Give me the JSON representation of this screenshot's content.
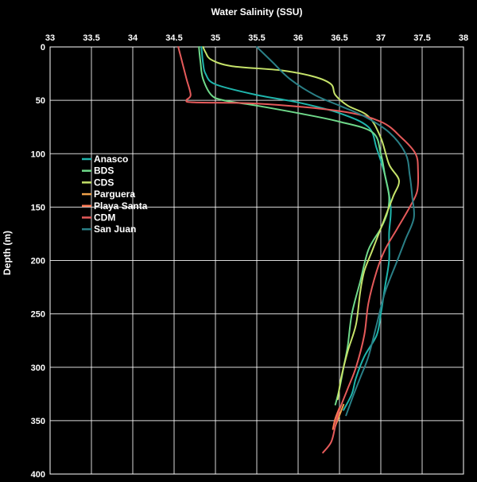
{
  "chart_data": {
    "type": "line",
    "title": "",
    "xlabel": "Water Salinity (SSU)",
    "ylabel": "Depth (m)",
    "xlim": [
      33,
      38
    ],
    "ylim": [
      400,
      0
    ],
    "x_axis_position": "top",
    "y_axis_inverted": true,
    "grid": true,
    "legend_position": "upper-left inside plot",
    "xticks": [
      "33",
      "33.5",
      "34",
      "34.5",
      "35",
      "35.5",
      "36",
      "36.5",
      "37",
      "37.5",
      "38"
    ],
    "yticks": [
      "0",
      "50",
      "100",
      "150",
      "200",
      "250",
      "300",
      "350",
      "400"
    ],
    "colors": {
      "background": "#000000",
      "grid": "#ffffff",
      "text": "#ffffff"
    },
    "series": [
      {
        "name": "Anasco",
        "color": "#1fb5ac",
        "x": [
          34.83,
          34.85,
          34.88,
          35.0,
          35.5,
          36.0,
          36.5,
          36.85,
          36.95,
          37.05,
          37.12,
          37.1,
          37.1,
          37.05,
          37.0,
          36.95,
          36.8,
          36.7,
          36.65,
          36.55
        ],
        "y": [
          0,
          15,
          25,
          35,
          45,
          52,
          62,
          75,
          95,
          120,
          150,
          175,
          200,
          225,
          250,
          270,
          290,
          310,
          325,
          340
        ]
      },
      {
        "name": "BDS",
        "color": "#6fd98a",
        "x": [
          34.8,
          34.82,
          34.85,
          34.95,
          35.1,
          35.5,
          36.0,
          36.5,
          36.9,
          37.0,
          37.05,
          37.1,
          37.08,
          37.0,
          36.85,
          36.75,
          36.65,
          36.6,
          36.55,
          36.5,
          36.45
        ],
        "y": [
          0,
          15,
          30,
          45,
          50,
          55,
          62,
          70,
          80,
          100,
          120,
          140,
          155,
          170,
          190,
          220,
          250,
          280,
          300,
          320,
          335
        ]
      },
      {
        "name": "CDS",
        "color": "#c6e36a",
        "x": [
          34.85,
          34.88,
          34.95,
          35.2,
          35.8,
          36.2,
          36.4,
          36.45,
          36.6,
          36.85,
          37.0,
          37.1,
          37.22,
          37.15,
          37.05,
          36.9,
          36.8,
          36.75,
          36.7,
          36.6,
          36.52,
          36.48
        ],
        "y": [
          0,
          5,
          12,
          18,
          22,
          28,
          35,
          45,
          55,
          65,
          85,
          110,
          125,
          140,
          160,
          190,
          210,
          230,
          260,
          285,
          310,
          330
        ]
      },
      {
        "name": "Parguera",
        "color": "#f0a14a",
        "x": [
          36.55,
          36.5,
          36.45
        ],
        "y": [
          335,
          345,
          355
        ]
      },
      {
        "name": "Playa Santa",
        "color": "#ff7a55",
        "x": [
          36.5,
          36.45,
          36.42
        ],
        "y": [
          338,
          348,
          358
        ]
      },
      {
        "name": "CDM",
        "color": "#e55a5a",
        "x": [
          34.55,
          34.6,
          34.65,
          34.7,
          34.65,
          34.75,
          35.5,
          36.5,
          37.0,
          37.25,
          37.42,
          37.45,
          37.44,
          37.35,
          37.2,
          37.05,
          36.95,
          36.85,
          36.8,
          36.7,
          36.6,
          36.5,
          36.45,
          36.4,
          36.3
        ],
        "y": [
          0,
          15,
          30,
          45,
          50,
          52,
          53,
          60,
          70,
          85,
          100,
          115,
          135,
          150,
          170,
          190,
          210,
          240,
          270,
          300,
          320,
          340,
          355,
          370,
          380
        ]
      },
      {
        "name": "San Juan",
        "color": "#2a7f86",
        "x": [
          35.5,
          35.7,
          35.9,
          36.2,
          36.5,
          36.8,
          37.1,
          37.3,
          37.35,
          37.38,
          37.4,
          37.3,
          37.2,
          37.05,
          36.95,
          36.85,
          36.75,
          36.65,
          36.58
        ],
        "y": [
          0,
          15,
          30,
          45,
          55,
          65,
          80,
          100,
          120,
          140,
          160,
          180,
          200,
          230,
          260,
          290,
          310,
          330,
          345
        ]
      }
    ]
  }
}
